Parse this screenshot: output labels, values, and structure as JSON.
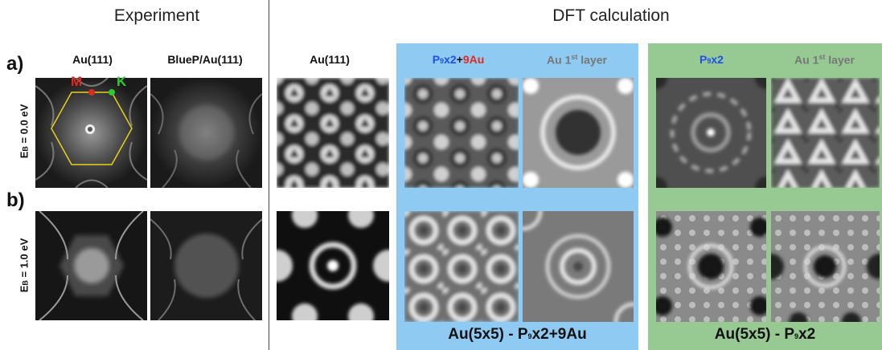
{
  "headers": {
    "experiment": "Experiment",
    "dft": "DFT calculation"
  },
  "rows": {
    "a": "a)",
    "b": "b)"
  },
  "energies": {
    "a_prefix": "E",
    "a_sub": "B",
    "a_value": " = 0.0 eV",
    "b_prefix": "E",
    "b_sub": "B",
    "b_value": " = 1.0 eV"
  },
  "columns": {
    "exp_au": "Au(111)",
    "exp_bluep": "BlueP/Au(111)",
    "dft_au": "Au(111)",
    "blue_col1_p": "P",
    "blue_col1_sub": "9",
    "blue_col1_x2": "x2",
    "blue_col1_plus": "+",
    "blue_col1_au": "9Au",
    "blue_col2_main": "Au 1",
    "blue_col2_sup": "st",
    "blue_col2_end": " layer",
    "green_col1_p": "P",
    "green_col1_sub": "9",
    "green_col1_x2": "x2",
    "green_col2_main": "Au 1",
    "green_col2_sup": "st",
    "green_col2_end": " layer"
  },
  "bz_labels": {
    "m": "M",
    "k": "K"
  },
  "footers": {
    "blue_pre": "Au(5x5) - P",
    "blue_sub": "9",
    "blue_post": "x2+9Au",
    "green_pre": "Au(5x5) - P",
    "green_sub": "9",
    "green_post": "x2"
  },
  "colors": {
    "blue_box": "#8ecaf2",
    "green_box": "#97c993",
    "m_point": "#e02a20",
    "k_point": "#2ecc2e",
    "bz_outline": "#e6d21a"
  }
}
